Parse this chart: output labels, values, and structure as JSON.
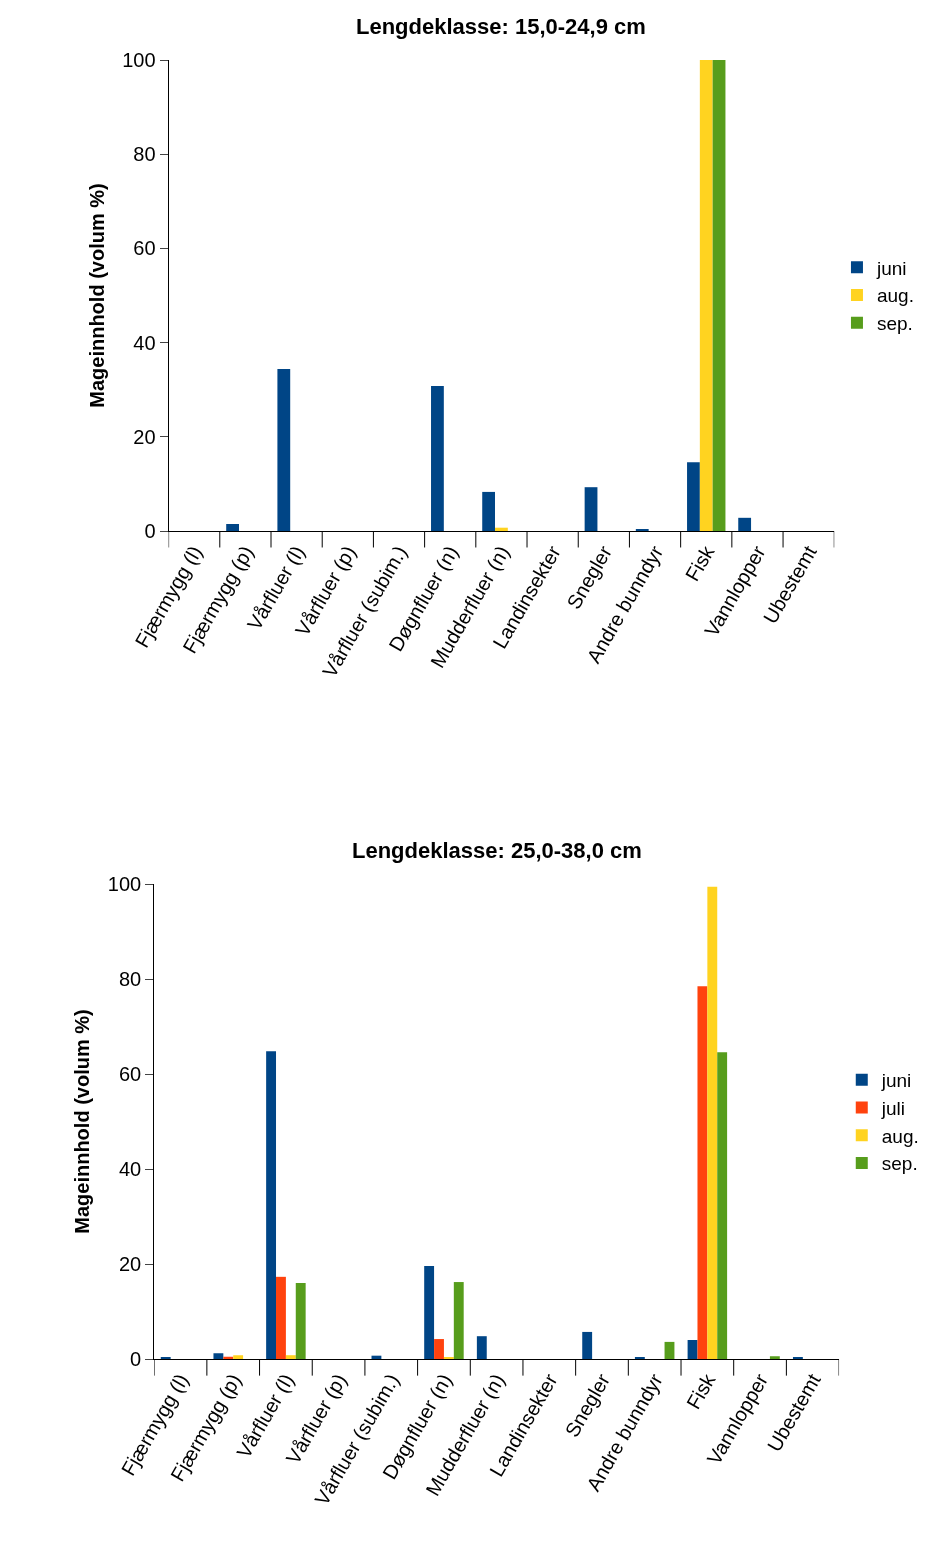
{
  "chart_data": [
    {
      "type": "bar",
      "title": "Lengdeklasse: 15,0-24,9 cm",
      "ylabel": "Mageinnhold (volum %)",
      "categories": [
        "Fjærmygg (l)",
        "Fjærmygg (p)",
        "Vårfluer (l)",
        "Vårfluer (p)",
        "Vårfluer (subim.)",
        "Døgnfluer (n)",
        "Mudderfluer (n)",
        "Landinsekter",
        "Snegler",
        "Andre bunndyr",
        "Fisk",
        "Vannlopper",
        "Ubestemt"
      ],
      "series": [
        {
          "name": "juni",
          "color": "#004586",
          "values": [
            0,
            1.5,
            34.4,
            0,
            0,
            30.8,
            8.3,
            0,
            9.3,
            0.4,
            14.6,
            2.8,
            0
          ]
        },
        {
          "name": "aug.",
          "color": "#ffd320",
          "values": [
            0,
            0,
            0,
            0,
            0,
            0,
            0.7,
            0,
            0,
            0,
            100,
            0,
            0
          ]
        },
        {
          "name": "sep.",
          "color": "#579d1c",
          "values": [
            0,
            0,
            0,
            0,
            0,
            0,
            0,
            0,
            0,
            0,
            100,
            0,
            0
          ]
        }
      ],
      "ylim": [
        0,
        100
      ],
      "yticks": [
        0,
        20,
        40,
        60,
        80,
        100
      ],
      "legend": "right"
    },
    {
      "type": "bar",
      "title": "Lengdeklasse: 25,0-38,0 cm",
      "ylabel": "Mageinnhold (volum %)",
      "categories": [
        "Fjærmygg (l)",
        "Fjærmygg (p)",
        "Vårfluer (l)",
        "Vårfluer (p)",
        "Vårfluer (subim.)",
        "Døgnfluer (n)",
        "Mudderfluer (n)",
        "Landinsekter",
        "Snegler",
        "Andre bunndyr",
        "Fisk",
        "Vannlopper",
        "Ubestemt"
      ],
      "series": [
        {
          "name": "juni",
          "color": "#004586",
          "values": [
            0.4,
            1.2,
            64.8,
            0,
            0.7,
            19.6,
            4.8,
            0,
            5.7,
            0.3,
            4.0,
            0,
            0.4
          ]
        },
        {
          "name": "juli",
          "color": "#ff420e",
          "values": [
            0,
            0.5,
            17.3,
            0,
            0,
            4.2,
            0,
            0,
            0,
            0,
            78.5,
            0,
            0
          ]
        },
        {
          "name": "aug.",
          "color": "#ffd320",
          "values": [
            0,
            0.8,
            0.8,
            0,
            0,
            0.3,
            0,
            0,
            0,
            0,
            99.4,
            0,
            0
          ]
        },
        {
          "name": "sep.",
          "color": "#579d1c",
          "values": [
            0,
            0,
            16.0,
            0,
            0,
            16.2,
            0,
            0,
            0,
            3.6,
            64.6,
            0.6,
            0
          ]
        }
      ],
      "ylim": [
        0,
        100
      ],
      "yticks": [
        0,
        20,
        40,
        60,
        80,
        100
      ],
      "legend": "right"
    }
  ]
}
